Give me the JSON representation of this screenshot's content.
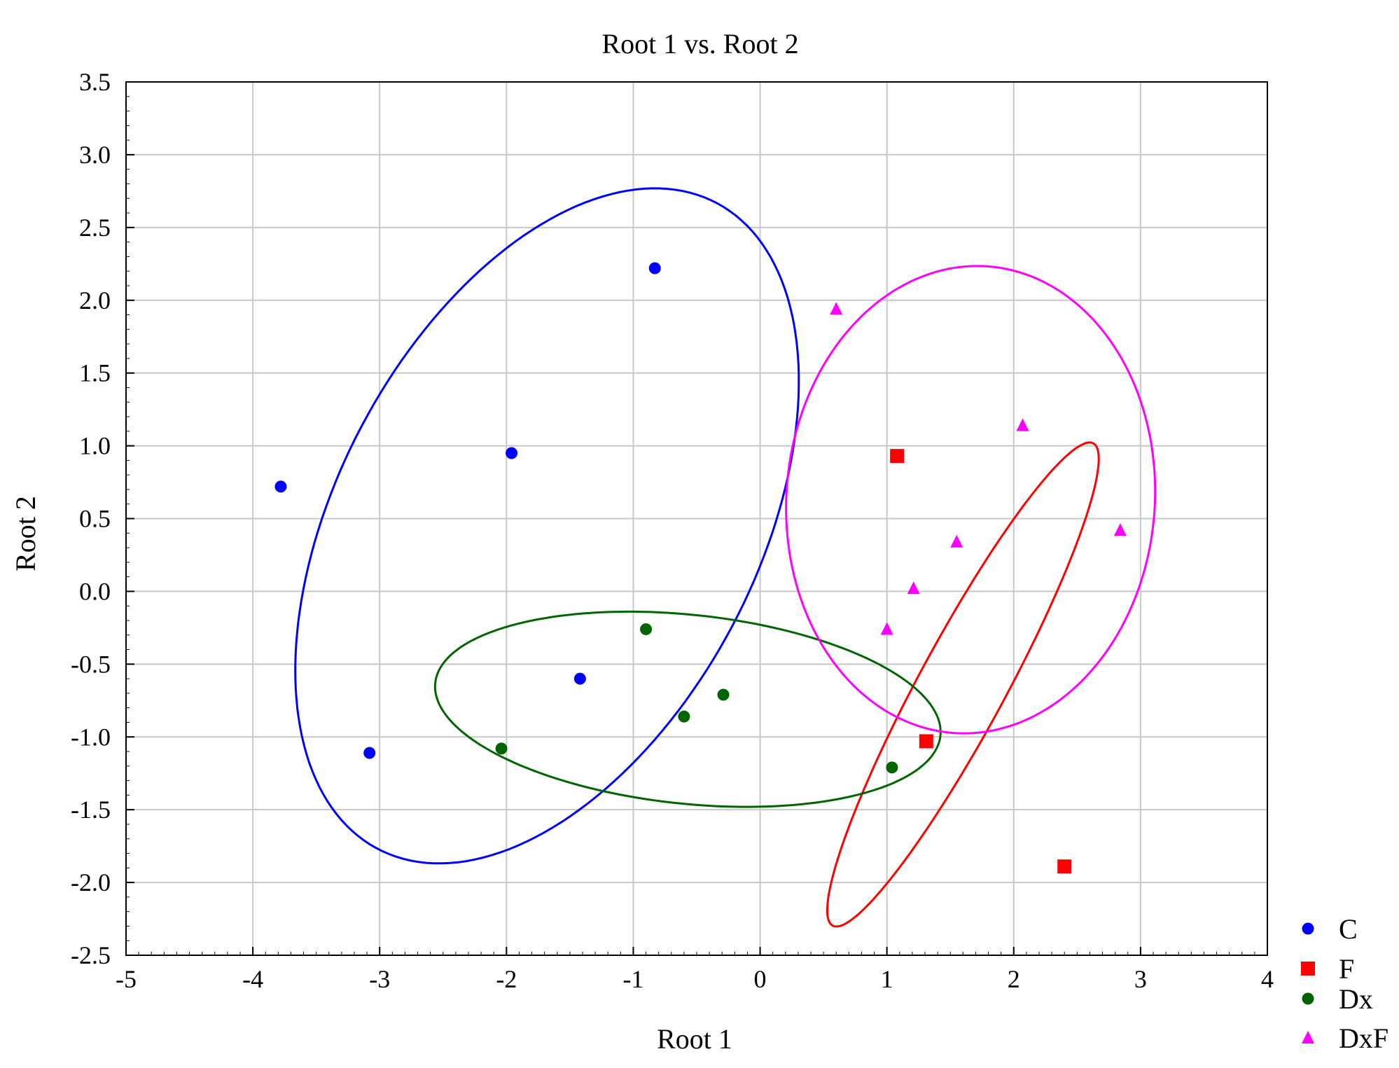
{
  "chart_data": {
    "type": "scatter",
    "title": "Root 1 vs. Root 2",
    "xlabel": "Root 1",
    "ylabel": "Root 2",
    "xlim": [
      -5,
      4
    ],
    "ylim": [
      -2.5,
      3.5
    ],
    "xticks": [
      "-5",
      "-4",
      "-3",
      "-2",
      "-1",
      "0",
      "1",
      "2",
      "3",
      "4"
    ],
    "yticks": [
      "-2.5",
      "-2.0",
      "-1.5",
      "-1.0",
      "-0.5",
      "0.0",
      "0.5",
      "1.0",
      "1.5",
      "2.0",
      "2.5",
      "3.0",
      "3.5"
    ],
    "grid": true,
    "legend_position": "bottom-right, outside plot",
    "series": [
      {
        "name": "C",
        "color": "#0000ff",
        "marker": "circle",
        "points": [
          [
            -3.78,
            0.72
          ],
          [
            -3.08,
            -1.11
          ],
          [
            -1.96,
            0.95
          ],
          [
            -1.42,
            -0.6
          ],
          [
            -0.83,
            2.22
          ]
        ]
      },
      {
        "name": "F",
        "color": "#ff0000",
        "marker": "square",
        "points": [
          [
            1.08,
            0.93
          ],
          [
            1.31,
            -1.03
          ],
          [
            2.4,
            -1.89
          ]
        ]
      },
      {
        "name": "Dx",
        "color": "#006400",
        "marker": "circle",
        "points": [
          [
            -2.04,
            -1.08
          ],
          [
            -0.9,
            -0.26
          ],
          [
            -0.6,
            -0.86
          ],
          [
            -0.29,
            -0.71
          ],
          [
            1.04,
            -1.21
          ]
        ]
      },
      {
        "name": "DxF",
        "color": "#ff00ff",
        "marker": "triangle",
        "points": [
          [
            0.6,
            1.94
          ],
          [
            1.0,
            -0.26
          ],
          [
            1.21,
            0.02
          ],
          [
            1.55,
            0.34
          ],
          [
            2.07,
            1.14
          ],
          [
            2.84,
            0.42
          ]
        ]
      }
    ],
    "ellipses": [
      {
        "series": "C",
        "color": "#0000ff",
        "center": [
          -1.68,
          0.45
        ],
        "semi_major": 2.6,
        "semi_minor": 1.6,
        "angle_deg": 55
      },
      {
        "series": "F",
        "color": "#ff0000",
        "center": [
          1.6,
          -0.64
        ],
        "semi_major": 1.95,
        "semi_minor": 0.33,
        "angle_deg": 58
      },
      {
        "series": "Dx",
        "color": "#006400",
        "center": [
          -0.57,
          -0.81
        ],
        "semi_major": 2.0,
        "semi_minor": 0.65,
        "angle_deg": -5
      },
      {
        "series": "DxF",
        "color": "#ff00ff",
        "center": [
          1.66,
          0.63
        ],
        "semi_major": 1.61,
        "semi_minor": 1.45,
        "angle_deg": 80
      }
    ]
  }
}
